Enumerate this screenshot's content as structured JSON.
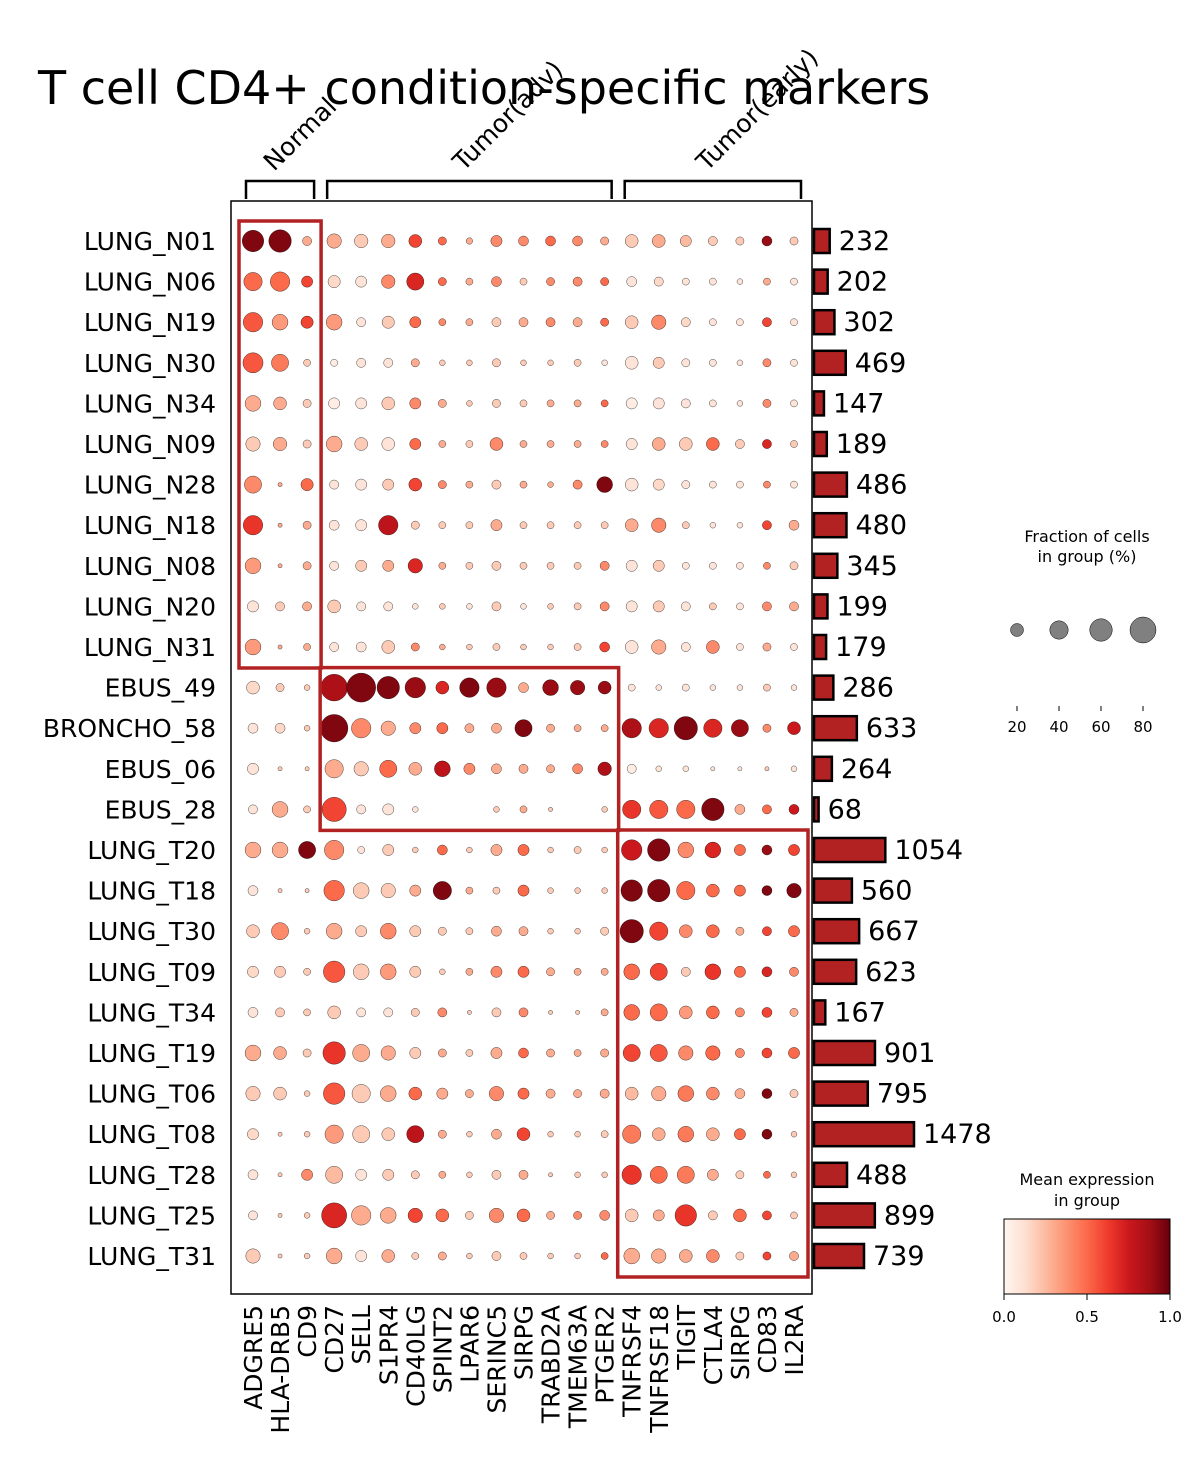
{
  "chart_data": {
    "type": "dotplot",
    "title": "T cell CD4+ condition-specific markers",
    "groups": [
      {
        "label": "Normal",
        "genes": [
          "ADGRE5",
          "HLA-DRB5",
          "CD9"
        ]
      },
      {
        "label": "Tumor(adv)",
        "genes": [
          "CD27",
          "SELL",
          "S1PR4",
          "CD40LG",
          "SPINT2",
          "LPAR6",
          "SERINC5",
          "SIRPG",
          "TRABD2A",
          "TMEM63A",
          "PTGER2"
        ]
      },
      {
        "label": "Tumor(early)",
        "genes": [
          "TNFRSF4",
          "TNFRSF18",
          "TIGIT",
          "CTLA4",
          "SIRPG",
          "CD83",
          "IL2RA"
        ]
      }
    ],
    "genes": [
      "ADGRE5",
      "HLA-DRB5",
      "CD9",
      "CD27",
      "SELL",
      "S1PR4",
      "CD40LG",
      "SPINT2",
      "LPAR6",
      "SERINC5",
      "SIRPG",
      "TRABD2A",
      "TMEM63A",
      "PTGER2",
      "TNFRSF4",
      "TNFRSF18",
      "TIGIT",
      "CTLA4",
      "SIRPG",
      "CD83",
      "IL2RA"
    ],
    "samples": [
      "LUNG_N01",
      "LUNG_N06",
      "LUNG_N19",
      "LUNG_N30",
      "LUNG_N34",
      "LUNG_N09",
      "LUNG_N28",
      "LUNG_N18",
      "LUNG_N08",
      "LUNG_N20",
      "LUNG_N31",
      "EBUS_49",
      "BRONCHO_58",
      "EBUS_06",
      "EBUS_28",
      "LUNG_T20",
      "LUNG_T18",
      "LUNG_T30",
      "LUNG_T09",
      "LUNG_T34",
      "LUNG_T19",
      "LUNG_T06",
      "LUNG_T08",
      "LUNG_T28",
      "LUNG_T25",
      "LUNG_T31"
    ],
    "cell_counts": [
      232,
      202,
      302,
      469,
      147,
      189,
      486,
      480,
      345,
      199,
      179,
      286,
      633,
      264,
      68,
      1054,
      560,
      667,
      623,
      167,
      901,
      795,
      1478,
      488,
      899,
      739
    ],
    "fraction_pct": [
      [
        55,
        60,
        10,
        25,
        22,
        22,
        20,
        8,
        5,
        15,
        12,
        12,
        12,
        8,
        20,
        20,
        15,
        10,
        8,
        12,
        8
      ],
      [
        40,
        45,
        15,
        18,
        15,
        22,
        35,
        8,
        6,
        12,
        6,
        8,
        10,
        8,
        12,
        10,
        6,
        6,
        4,
        6,
        6
      ],
      [
        45,
        30,
        18,
        30,
        10,
        18,
        15,
        6,
        6,
        10,
        10,
        10,
        10,
        8,
        20,
        25,
        10,
        6,
        6,
        10,
        6
      ],
      [
        48,
        35,
        6,
        6,
        10,
        10,
        8,
        4,
        4,
        8,
        4,
        4,
        6,
        4,
        20,
        15,
        8,
        6,
        4,
        8,
        6
      ],
      [
        30,
        20,
        8,
        15,
        15,
        20,
        15,
        8,
        4,
        8,
        6,
        6,
        6,
        6,
        15,
        15,
        10,
        6,
        4,
        8,
        6
      ],
      [
        25,
        22,
        8,
        30,
        20,
        20,
        15,
        6,
        6,
        20,
        6,
        6,
        6,
        6,
        15,
        20,
        20,
        20,
        10,
        10,
        6
      ],
      [
        35,
        2,
        18,
        10,
        15,
        15,
        20,
        8,
        6,
        10,
        6,
        4,
        10,
        30,
        20,
        15,
        8,
        6,
        6,
        6,
        6
      ],
      [
        45,
        2,
        8,
        12,
        15,
        45,
        8,
        6,
        6,
        15,
        6,
        6,
        6,
        6,
        20,
        25,
        6,
        4,
        4,
        10,
        12
      ],
      [
        30,
        2,
        8,
        10,
        15,
        15,
        25,
        6,
        6,
        10,
        6,
        6,
        6,
        10,
        15,
        15,
        6,
        6,
        6,
        6,
        8
      ],
      [
        15,
        10,
        10,
        20,
        10,
        10,
        4,
        4,
        4,
        10,
        4,
        4,
        6,
        10,
        15,
        15,
        10,
        6,
        6,
        10,
        10
      ],
      [
        30,
        2,
        6,
        10,
        12,
        20,
        8,
        4,
        4,
        6,
        4,
        4,
        6,
        12,
        20,
        25,
        10,
        20,
        6,
        8,
        6
      ],
      [
        20,
        8,
        4,
        85,
        100,
        60,
        50,
        20,
        45,
        45,
        12,
        30,
        25,
        20,
        6,
        4,
        6,
        4,
        4,
        6,
        4
      ],
      [
        12,
        12,
        4,
        90,
        45,
        25,
        15,
        15,
        10,
        12,
        35,
        8,
        6,
        6,
        45,
        45,
        65,
        40,
        35,
        8,
        20
      ],
      [
        15,
        2,
        2,
        40,
        25,
        35,
        20,
        30,
        15,
        12,
        10,
        8,
        12,
        22,
        10,
        4,
        4,
        2,
        2,
        2,
        4
      ],
      [
        10,
        30,
        6,
        70,
        10,
        15,
        4,
        0,
        0,
        4,
        6,
        2,
        0,
        4,
        40,
        40,
        40,
        60,
        12,
        10,
        12
      ],
      [
        30,
        30,
        35,
        45,
        6,
        15,
        4,
        12,
        4,
        15,
        15,
        4,
        6,
        4,
        50,
        60,
        30,
        30,
        15,
        12,
        15
      ],
      [
        12,
        2,
        2,
        50,
        30,
        25,
        15,
        40,
        6,
        6,
        15,
        4,
        4,
        4,
        55,
        60,
        40,
        20,
        15,
        12,
        25
      ],
      [
        20,
        35,
        4,
        30,
        15,
        30,
        15,
        8,
        6,
        12,
        10,
        4,
        4,
        8,
        65,
        40,
        20,
        20,
        8,
        10,
        15
      ],
      [
        15,
        15,
        6,
        55,
        30,
        30,
        15,
        4,
        6,
        15,
        15,
        8,
        6,
        6,
        30,
        35,
        10,
        30,
        15,
        12,
        10
      ],
      [
        12,
        10,
        6,
        20,
        10,
        10,
        8,
        10,
        2,
        10,
        10,
        2,
        2,
        6,
        30,
        35,
        20,
        20,
        10,
        12,
        8
      ],
      [
        30,
        20,
        8,
        60,
        35,
        25,
        15,
        8,
        6,
        15,
        12,
        8,
        6,
        8,
        35,
        35,
        25,
        25,
        10,
        12,
        15
      ],
      [
        25,
        20,
        4,
        55,
        40,
        30,
        20,
        15,
        8,
        25,
        15,
        10,
        8,
        10,
        20,
        25,
        30,
        20,
        12,
        12,
        8
      ],
      [
        15,
        2,
        4,
        40,
        35,
        20,
        35,
        8,
        4,
        12,
        20,
        4,
        4,
        6,
        40,
        20,
        30,
        20,
        15,
        12,
        4
      ],
      [
        12,
        2,
        15,
        35,
        15,
        15,
        8,
        6,
        4,
        10,
        10,
        2,
        4,
        4,
        45,
        35,
        35,
        15,
        8,
        6,
        4
      ],
      [
        10,
        2,
        4,
        75,
        45,
        30,
        25,
        20,
        8,
        25,
        20,
        8,
        8,
        12,
        20,
        15,
        55,
        10,
        20,
        10,
        6
      ],
      [
        25,
        2,
        4,
        30,
        15,
        20,
        6,
        8,
        4,
        10,
        6,
        4,
        4,
        6,
        30,
        25,
        20,
        20,
        8,
        8,
        10
      ]
    ],
    "mean_expression": [
      [
        0.95,
        0.95,
        0.3,
        0.3,
        0.2,
        0.3,
        0.6,
        0.5,
        0.3,
        0.4,
        0.4,
        0.5,
        0.4,
        0.3,
        0.2,
        0.3,
        0.25,
        0.2,
        0.2,
        0.9,
        0.2
      ],
      [
        0.5,
        0.5,
        0.6,
        0.15,
        0.1,
        0.4,
        0.7,
        0.5,
        0.3,
        0.4,
        0.2,
        0.4,
        0.4,
        0.5,
        0.1,
        0.15,
        0.1,
        0.1,
        0.1,
        0.3,
        0.1
      ],
      [
        0.55,
        0.35,
        0.6,
        0.35,
        0.1,
        0.2,
        0.5,
        0.4,
        0.3,
        0.2,
        0.3,
        0.4,
        0.3,
        0.5,
        0.2,
        0.4,
        0.15,
        0.1,
        0.1,
        0.6,
        0.1
      ],
      [
        0.55,
        0.45,
        0.2,
        0.05,
        0.1,
        0.1,
        0.3,
        0.2,
        0.2,
        0.2,
        0.2,
        0.2,
        0.2,
        0.1,
        0.1,
        0.2,
        0.1,
        0.1,
        0.1,
        0.4,
        0.1
      ],
      [
        0.3,
        0.3,
        0.2,
        0.05,
        0.1,
        0.2,
        0.4,
        0.3,
        0.2,
        0.2,
        0.2,
        0.3,
        0.3,
        0.5,
        0.05,
        0.1,
        0.1,
        0.1,
        0.1,
        0.4,
        0.1
      ],
      [
        0.2,
        0.3,
        0.2,
        0.3,
        0.2,
        0.1,
        0.5,
        0.3,
        0.2,
        0.4,
        0.3,
        0.3,
        0.3,
        0.4,
        0.1,
        0.3,
        0.2,
        0.5,
        0.2,
        0.7,
        0.2
      ],
      [
        0.4,
        0.3,
        0.5,
        0.1,
        0.1,
        0.2,
        0.6,
        0.4,
        0.3,
        0.2,
        0.3,
        0.3,
        0.4,
        0.95,
        0.1,
        0.15,
        0.1,
        0.1,
        0.1,
        0.4,
        0.1
      ],
      [
        0.65,
        0.3,
        0.3,
        0.1,
        0.1,
        0.8,
        0.2,
        0.2,
        0.2,
        0.3,
        0.2,
        0.2,
        0.2,
        0.2,
        0.3,
        0.4,
        0.2,
        0.1,
        0.1,
        0.6,
        0.3
      ],
      [
        0.35,
        0.3,
        0.3,
        0.1,
        0.2,
        0.3,
        0.7,
        0.3,
        0.2,
        0.2,
        0.2,
        0.2,
        0.2,
        0.4,
        0.1,
        0.2,
        0.1,
        0.1,
        0.1,
        0.4,
        0.2
      ],
      [
        0.1,
        0.2,
        0.3,
        0.2,
        0.1,
        0.1,
        0.1,
        0.2,
        0.1,
        0.2,
        0.1,
        0.2,
        0.2,
        0.4,
        0.1,
        0.2,
        0.1,
        0.2,
        0.1,
        0.4,
        0.3
      ],
      [
        0.35,
        0.3,
        0.3,
        0.1,
        0.1,
        0.2,
        0.4,
        0.3,
        0.2,
        0.2,
        0.2,
        0.2,
        0.2,
        0.6,
        0.1,
        0.3,
        0.1,
        0.4,
        0.1,
        0.3,
        0.1
      ],
      [
        0.15,
        0.2,
        0.2,
        0.85,
        0.95,
        0.95,
        0.9,
        0.7,
        0.95,
        0.9,
        0.3,
        0.9,
        0.9,
        0.9,
        0.1,
        0.1,
        0.1,
        0.1,
        0.1,
        0.2,
        0.1
      ],
      [
        0.1,
        0.15,
        0.2,
        0.95,
        0.4,
        0.3,
        0.4,
        0.5,
        0.3,
        0.3,
        0.95,
        0.3,
        0.3,
        0.3,
        0.85,
        0.7,
        0.95,
        0.7,
        0.9,
        0.4,
        0.75
      ],
      [
        0.1,
        0.2,
        0.2,
        0.3,
        0.2,
        0.5,
        0.3,
        0.8,
        0.4,
        0.3,
        0.3,
        0.3,
        0.4,
        0.85,
        0.05,
        0.1,
        0.1,
        0.1,
        0.1,
        0.2,
        0.1
      ],
      [
        0.1,
        0.3,
        0.2,
        0.6,
        0.1,
        0.1,
        0.1,
        0.2,
        0.2,
        0.2,
        0.3,
        0.2,
        0.2,
        0.2,
        0.65,
        0.55,
        0.5,
        0.95,
        0.3,
        0.5,
        0.75
      ],
      [
        0.3,
        0.3,
        0.95,
        0.4,
        0.1,
        0.2,
        0.2,
        0.5,
        0.2,
        0.3,
        0.5,
        0.2,
        0.2,
        0.2,
        0.75,
        0.95,
        0.4,
        0.7,
        0.5,
        0.9,
        0.6
      ],
      [
        0.1,
        0.2,
        0.2,
        0.5,
        0.2,
        0.2,
        0.3,
        0.95,
        0.3,
        0.2,
        0.5,
        0.2,
        0.2,
        0.2,
        0.95,
        0.95,
        0.5,
        0.5,
        0.5,
        0.95,
        0.95
      ],
      [
        0.2,
        0.4,
        0.2,
        0.3,
        0.2,
        0.4,
        0.2,
        0.2,
        0.2,
        0.3,
        0.3,
        0.2,
        0.2,
        0.2,
        0.95,
        0.6,
        0.4,
        0.5,
        0.3,
        0.6,
        0.5
      ],
      [
        0.15,
        0.2,
        0.2,
        0.55,
        0.2,
        0.35,
        0.2,
        0.2,
        0.3,
        0.4,
        0.5,
        0.3,
        0.3,
        0.3,
        0.5,
        0.6,
        0.2,
        0.65,
        0.5,
        0.7,
        0.4
      ],
      [
        0.1,
        0.2,
        0.2,
        0.2,
        0.1,
        0.1,
        0.2,
        0.4,
        0.2,
        0.2,
        0.4,
        0.2,
        0.2,
        0.3,
        0.5,
        0.5,
        0.35,
        0.5,
        0.4,
        0.6,
        0.3
      ],
      [
        0.3,
        0.3,
        0.2,
        0.65,
        0.3,
        0.3,
        0.2,
        0.3,
        0.2,
        0.3,
        0.5,
        0.3,
        0.3,
        0.3,
        0.6,
        0.55,
        0.4,
        0.5,
        0.4,
        0.6,
        0.5
      ],
      [
        0.2,
        0.2,
        0.2,
        0.55,
        0.2,
        0.3,
        0.5,
        0.3,
        0.3,
        0.4,
        0.5,
        0.3,
        0.3,
        0.3,
        0.25,
        0.3,
        0.45,
        0.4,
        0.3,
        0.95,
        0.2
      ],
      [
        0.15,
        0.2,
        0.2,
        0.35,
        0.2,
        0.2,
        0.8,
        0.3,
        0.2,
        0.3,
        0.6,
        0.2,
        0.2,
        0.2,
        0.45,
        0.3,
        0.45,
        0.3,
        0.5,
        0.95,
        0.2
      ],
      [
        0.1,
        0.2,
        0.4,
        0.25,
        0.1,
        0.2,
        0.2,
        0.3,
        0.2,
        0.2,
        0.3,
        0.2,
        0.2,
        0.2,
        0.65,
        0.5,
        0.45,
        0.3,
        0.2,
        0.5,
        0.2
      ],
      [
        0.1,
        0.2,
        0.2,
        0.7,
        0.3,
        0.3,
        0.6,
        0.5,
        0.2,
        0.4,
        0.5,
        0.3,
        0.4,
        0.4,
        0.2,
        0.3,
        0.65,
        0.2,
        0.5,
        0.6,
        0.2
      ],
      [
        0.2,
        0.2,
        0.2,
        0.3,
        0.1,
        0.3,
        0.2,
        0.3,
        0.2,
        0.2,
        0.2,
        0.2,
        0.2,
        0.5,
        0.3,
        0.3,
        0.3,
        0.4,
        0.2,
        0.6,
        0.3
      ]
    ],
    "highlight_blocks": [
      {
        "group": "Normal",
        "row_start": 0,
        "row_end": 10
      },
      {
        "group": "Tumor(adv)",
        "row_start": 11,
        "row_end": 14
      },
      {
        "group": "Tumor(early)",
        "row_start": 15,
        "row_end": 25
      }
    ],
    "size_legend": {
      "title_line1": "Fraction of cells",
      "title_line2": "in group (%)",
      "values": [
        20,
        40,
        60,
        80
      ],
      "labels": [
        "20",
        "40",
        "60",
        "80"
      ]
    },
    "color_legend": {
      "title_line1": "Mean expression",
      "title_line2": "in group",
      "ticks": [
        "0.0",
        "0.5",
        "1.0"
      ],
      "range": [
        0,
        1
      ],
      "colormap": "Reds"
    },
    "colors": {
      "bar_fill": "#b22222",
      "highlight": "#b22222",
      "size_legend_dot": "#808080"
    }
  }
}
